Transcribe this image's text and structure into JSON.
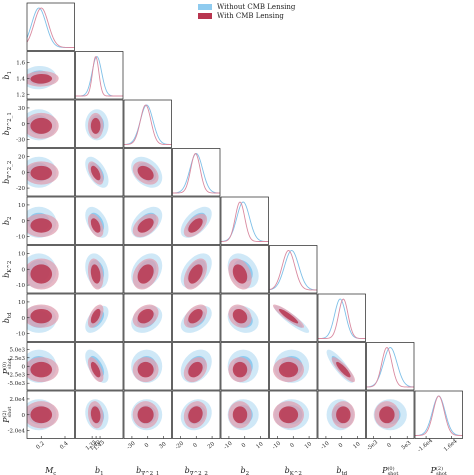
{
  "legend": {
    "entries": [
      {
        "label": "Without CMB Lensing",
        "color": "#8fcbef"
      },
      {
        "label": "With CMB Lensing",
        "color": "#b8354f"
      }
    ]
  },
  "chart_data": {
    "type": "corner",
    "grid": false,
    "legend_position": "top-center",
    "series": [
      {
        "name": "Without CMB Lensing",
        "color": "#8fcbef"
      },
      {
        "name": "With CMB Lensing",
        "color": "#b8354f"
      }
    ],
    "parameters": [
      {
        "label": "M_c",
        "range": [
          0.08,
          0.48
        ],
        "x_ticks": [
          "0.2",
          "0.4"
        ],
        "y_ticks": []
      },
      {
        "label": "b_1",
        "range": [
          1.14,
          1.74
        ],
        "x_ticks": [
          "1.35",
          "1.40",
          "1.45"
        ],
        "y_ticks": [
          "1.6",
          "1.4",
          "1.2"
        ]
      },
      {
        "label": "b_{∇^2_1}",
        "range": [
          -45,
          45
        ],
        "x_ticks": [
          "-30",
          "0",
          "30"
        ],
        "y_ticks": [
          "30",
          "0",
          "-30"
        ]
      },
      {
        "label": "b_{∇^2_2}",
        "range": [
          -30,
          30
        ],
        "x_ticks": [
          "-20",
          "0",
          "20"
        ],
        "y_ticks": [
          "20",
          "0",
          "-20"
        ]
      },
      {
        "label": "b_2",
        "range": [
          -15,
          15
        ],
        "x_ticks": [
          "-10",
          "0",
          "10"
        ],
        "y_ticks": [
          "10",
          "0",
          "-10"
        ]
      },
      {
        "label": "b_{K^2}",
        "range": [
          -15,
          15
        ],
        "x_ticks": [
          "-10",
          "0",
          "10"
        ],
        "y_ticks": [
          "10",
          "0",
          "-10"
        ]
      },
      {
        "label": "b_{td}",
        "range": [
          -15,
          15
        ],
        "x_ticks": [
          "-10",
          "0",
          "10"
        ],
        "y_ticks": [
          "10",
          "0",
          "-10"
        ]
      },
      {
        "label": "P^{(0)}_{shot}",
        "range": [
          -7000,
          7000
        ],
        "x_ticks": [
          "-5e3",
          "0",
          "5e3"
        ],
        "y_ticks": [
          "5.0e3",
          "2.5e3",
          "0",
          "-2.5e3",
          "-5.0e3"
        ]
      },
      {
        "label": "P^{(2)}_{shot}",
        "range": [
          -30000,
          30000
        ],
        "x_ticks": [
          "-1.6e4",
          "1.6e4"
        ],
        "y_ticks": [
          "2.0e4",
          "0",
          "-2.0e4"
        ]
      }
    ],
    "correlations": [
      [
        1.0,
        0.05,
        0.0,
        0.0,
        0.0,
        0.0,
        0.0,
        0.0,
        0.0
      ],
      [
        0.05,
        1.0,
        0.0,
        -0.55,
        -0.45,
        -0.25,
        0.55,
        -0.6,
        -0.15
      ],
      [
        0.0,
        0.0,
        1.0,
        -0.35,
        0.45,
        0.3,
        0.3,
        0.0,
        0.0
      ],
      [
        0.0,
        -0.55,
        -0.35,
        1.0,
        0.55,
        0.45,
        0.45,
        0.3,
        0.15
      ],
      [
        0.0,
        -0.45,
        0.45,
        0.55,
        1.0,
        -0.3,
        -0.2,
        0.0,
        0.0
      ],
      [
        0.0,
        -0.25,
        0.3,
        0.45,
        -0.3,
        1.0,
        -0.9,
        0.0,
        0.0
      ],
      [
        0.0,
        0.55,
        0.3,
        0.45,
        -0.2,
        -0.9,
        1.0,
        -0.85,
        0.0
      ],
      [
        0.0,
        -0.6,
        0.0,
        0.3,
        0.0,
        0.0,
        -0.85,
        1.0,
        0.0
      ],
      [
        0.0,
        -0.15,
        0.0,
        0.15,
        0.0,
        0.0,
        0.0,
        0.0,
        1.0
      ]
    ],
    "posterior_means": {
      "Without CMB Lensing": [
        0.18,
        1.41,
        -2,
        0,
        -1,
        -1,
        -1,
        0,
        0
      ],
      "With CMB Lensing": [
        0.2,
        1.395,
        -4,
        -1,
        -3,
        -3,
        1,
        -1000,
        0
      ]
    },
    "posterior_sigmas": {
      "Without CMB Lensing": [
        0.06,
        0.06,
        12,
        8,
        4.0,
        4.5,
        3.5,
        2000,
        8000
      ],
      "With CMB Lensing": [
        0.06,
        0.04,
        10,
        6,
        3.0,
        4.0,
        3.0,
        1500,
        7000
      ]
    }
  }
}
